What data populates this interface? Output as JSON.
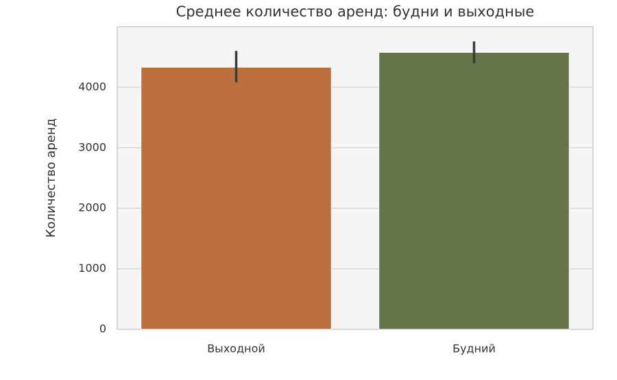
{
  "chart_data": {
    "type": "bar",
    "title": "Среднее количество аренд: будни и выходные",
    "ylabel": "Количество аренд",
    "categories": [
      "Выходной",
      "Будний"
    ],
    "values": [
      4330,
      4576
    ],
    "ci": [
      [
        4080,
        4600
      ],
      [
        4395,
        4757
      ]
    ],
    "colors": [
      "#bc6f3c",
      "#667548"
    ],
    "ylim": [
      0,
      5000
    ],
    "yticks": [
      0,
      1000,
      2000,
      3000,
      4000
    ],
    "grid": true
  }
}
